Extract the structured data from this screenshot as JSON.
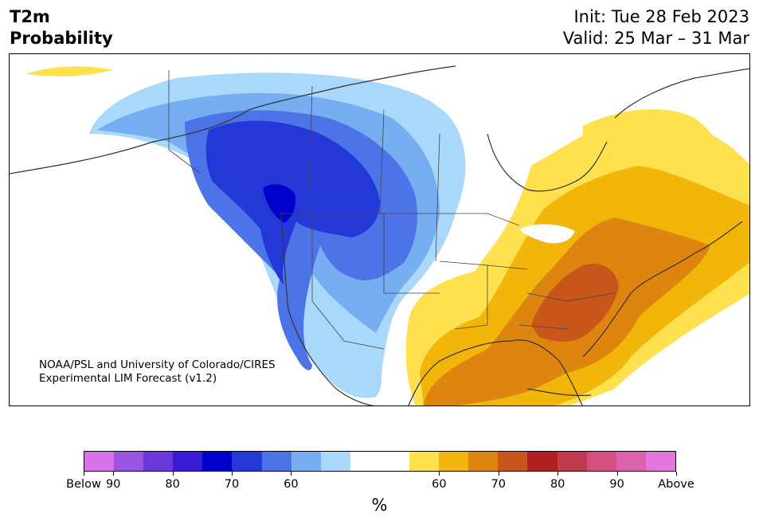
{
  "header": {
    "title_line1": "T2m",
    "title_line2": "Probability",
    "init": "Init: Tue 28 Feb 2023",
    "valid": "Valid: 25 Mar – 31 Mar"
  },
  "credit": {
    "line1": "NOAA/PSL and University of Colorado/CIRES",
    "line2": "Experimental LIM Forecast (v1.2)"
  },
  "colorbar": {
    "colors": [
      "#d872e8",
      "#9a55e0",
      "#6a38d8",
      "#3a1ad4",
      "#0000cc",
      "#2438d8",
      "#4d74e6",
      "#77aef2",
      "#aad8fa",
      "#ffffff",
      "#ffffff",
      "#ffe04e",
      "#f2b60a",
      "#dd850f",
      "#c8551a",
      "#b02020",
      "#c23a4e",
      "#d45082",
      "#dc62b0",
      "#e476e0"
    ],
    "tick_labels": [
      "Below",
      "90",
      "80",
      "70",
      "60",
      "60",
      "70",
      "80",
      "90",
      "Above"
    ],
    "unit": "%"
  }
}
